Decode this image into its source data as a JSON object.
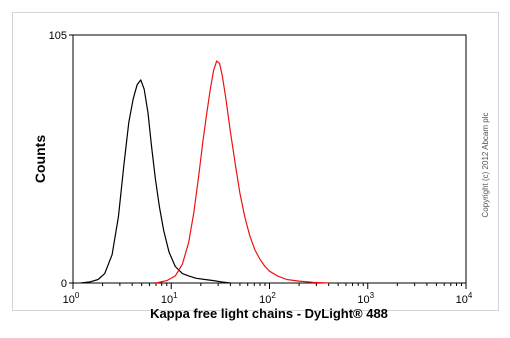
{
  "chart_data": {
    "type": "line",
    "xlabel": "Kappa free light chains - DyLight® 488",
    "ylabel": "Counts",
    "x_scale": "log",
    "xlim": [
      1,
      10000
    ],
    "ylim": [
      0,
      105
    ],
    "x_ticks": [
      {
        "base": "10",
        "exp": "0",
        "value": 1
      },
      {
        "base": "10",
        "exp": "1",
        "value": 10
      },
      {
        "base": "10",
        "exp": "2",
        "value": 100
      },
      {
        "base": "10",
        "exp": "3",
        "value": 1000
      },
      {
        "base": "10",
        "exp": "4",
        "value": 10000
      }
    ],
    "y_ticks": [
      {
        "label": "0",
        "value": 0
      },
      {
        "label": "105",
        "value": 105
      }
    ],
    "grid": false,
    "series": [
      {
        "color": "#000000",
        "x": [
          1.2,
          1.5,
          1.8,
          2.1,
          2.5,
          2.9,
          3.3,
          3.7,
          4.1,
          4.5,
          4.9,
          5.3,
          5.8,
          6.3,
          6.9,
          7.6,
          8.4,
          9.5,
          11,
          13,
          15,
          18,
          22,
          27,
          32,
          40
        ],
        "y": [
          0,
          0.5,
          1.5,
          4,
          12,
          28,
          50,
          68,
          78,
          84,
          86,
          82,
          72,
          58,
          44,
          32,
          22,
          13,
          7,
          4,
          3,
          2,
          1.5,
          1,
          0.5,
          0
        ]
      },
      {
        "color": "#ee1111",
        "x": [
          7,
          9,
          11,
          13,
          15,
          17,
          19,
          21,
          23,
          25,
          27,
          29,
          31,
          33,
          36,
          40,
          45,
          50,
          56,
          63,
          71,
          80,
          90,
          100,
          120,
          150,
          200,
          280,
          400
        ],
        "y": [
          0,
          1,
          3,
          8,
          17,
          30,
          45,
          60,
          72,
          82,
          90,
          94,
          93,
          88,
          78,
          64,
          50,
          38,
          28,
          20,
          14,
          10,
          7,
          5,
          3,
          1.5,
          0.8,
          0.3,
          0
        ]
      }
    ]
  },
  "watermark": "Copyright (c) 2012 Abcam plc"
}
